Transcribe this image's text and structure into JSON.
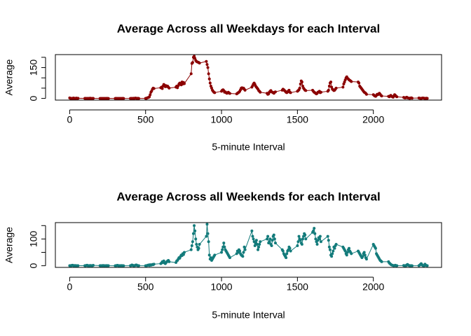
{
  "chart_data": [
    {
      "type": "line",
      "title": "Average Across all Weekdays for each Interval",
      "xlabel": "5-minute Interval",
      "ylabel": "Average",
      "x": [
        0,
        5,
        10,
        15,
        20,
        25,
        30,
        35,
        40,
        45,
        50,
        55,
        100,
        105,
        110,
        115,
        120,
        125,
        130,
        135,
        140,
        145,
        150,
        155,
        200,
        205,
        210,
        215,
        220,
        225,
        230,
        235,
        240,
        245,
        250,
        255,
        300,
        305,
        310,
        315,
        320,
        325,
        330,
        335,
        340,
        345,
        350,
        355,
        400,
        405,
        410,
        415,
        420,
        425,
        430,
        435,
        440,
        445,
        450,
        455,
        500,
        505,
        510,
        515,
        520,
        525,
        530,
        535,
        540,
        545,
        550,
        555,
        600,
        605,
        610,
        615,
        620,
        625,
        630,
        635,
        640,
        645,
        650,
        655,
        700,
        705,
        710,
        715,
        720,
        725,
        730,
        735,
        740,
        745,
        750,
        755,
        800,
        805,
        810,
        815,
        820,
        825,
        830,
        835,
        840,
        845,
        850,
        855,
        900,
        905,
        910,
        915,
        920,
        925,
        930,
        935,
        940,
        945,
        950,
        955,
        1000,
        1005,
        1010,
        1015,
        1020,
        1025,
        1030,
        1035,
        1040,
        1045,
        1050,
        1055,
        1100,
        1105,
        1110,
        1115,
        1120,
        1125,
        1130,
        1135,
        1140,
        1145,
        1150,
        1155,
        1200,
        1205,
        1210,
        1215,
        1220,
        1225,
        1230,
        1235,
        1240,
        1245,
        1250,
        1255,
        1300,
        1305,
        1310,
        1315,
        1320,
        1325,
        1330,
        1335,
        1340,
        1345,
        1350,
        1355,
        1400,
        1405,
        1410,
        1415,
        1420,
        1425,
        1430,
        1435,
        1440,
        1445,
        1450,
        1455,
        1500,
        1505,
        1510,
        1515,
        1520,
        1525,
        1530,
        1535,
        1540,
        1545,
        1550,
        1555,
        1600,
        1605,
        1610,
        1615,
        1620,
        1625,
        1630,
        1635,
        1640,
        1645,
        1650,
        1655,
        1700,
        1705,
        1710,
        1715,
        1720,
        1725,
        1730,
        1735,
        1740,
        1745,
        1750,
        1755,
        1800,
        1805,
        1810,
        1815,
        1820,
        1825,
        1830,
        1835,
        1840,
        1845,
        1850,
        1855,
        1900,
        1905,
        1910,
        1915,
        1920,
        1925,
        1930,
        1935,
        1940,
        1945,
        1950,
        1955,
        2000,
        2005,
        2010,
        2015,
        2020,
        2025,
        2030,
        2035,
        2040,
        2045,
        2050,
        2055,
        2100,
        2105,
        2110,
        2115,
        2120,
        2125,
        2130,
        2135,
        2140,
        2145,
        2150,
        2155,
        2200,
        2205,
        2210,
        2215,
        2220,
        2225,
        2230,
        2235,
        2240,
        2245,
        2250,
        2255,
        2300,
        2305,
        2310,
        2315,
        2320,
        2325,
        2330,
        2335,
        2340,
        2345,
        2350,
        2355
      ],
      "values": [
        2.3,
        0.4,
        0.2,
        0.2,
        0.1,
        2.1,
        0.5,
        0.8,
        0,
        1.4,
        0.3,
        0.7,
        0.2,
        0.4,
        0,
        0,
        0.5,
        0.1,
        0.3,
        1.3,
        0,
        0,
        0.1,
        0.2,
        0,
        0,
        0,
        0,
        0,
        0,
        0,
        0,
        0,
        0.2,
        0,
        0.1,
        0,
        0.2,
        0,
        0,
        0.1,
        0,
        0,
        0,
        0,
        0,
        0.5,
        0,
        0.1,
        0.3,
        0,
        0,
        0.8,
        0,
        1.1,
        1.4,
        0.3,
        0,
        0.8,
        0,
        0.4,
        0.3,
        2.6,
        3.6,
        5.2,
        8.1,
        18,
        30,
        36,
        45,
        50,
        48,
        52,
        55,
        48,
        60,
        68,
        64,
        57,
        62,
        58,
        60,
        55,
        50,
        55,
        60,
        52,
        62,
        70,
        75,
        68,
        66,
        80,
        70,
        78,
        72,
        120,
        170,
        175,
        200,
        205,
        195,
        185,
        180,
        178,
        176,
        175,
        172,
        180,
        165,
        150,
        120,
        95,
        75,
        60,
        50,
        40,
        35,
        30,
        28,
        35,
        40,
        42,
        38,
        30,
        32,
        28,
        25,
        27,
        30,
        26,
        24,
        22,
        25,
        28,
        30,
        35,
        42,
        50,
        52,
        48,
        50,
        45,
        40,
        55,
        62,
        70,
        75,
        68,
        60,
        55,
        50,
        45,
        38,
        35,
        30,
        25,
        20,
        22,
        30,
        35,
        38,
        32,
        30,
        28,
        25,
        30,
        32,
        40,
        45,
        42,
        38,
        35,
        30,
        28,
        32,
        36,
        40,
        30,
        28,
        35,
        38,
        42,
        50,
        70,
        85,
        80,
        60,
        50,
        45,
        40,
        38,
        40,
        35,
        30,
        28,
        25,
        22,
        25,
        30,
        32,
        35,
        28,
        30,
        35,
        40,
        60,
        75,
        80,
        55,
        45,
        42,
        38,
        40,
        45,
        50,
        55,
        70,
        80,
        90,
        100,
        105,
        98,
        95,
        90,
        88,
        85,
        82,
        80,
        75,
        60,
        55,
        50,
        45,
        40,
        35,
        30,
        28,
        25,
        20,
        18,
        15,
        12,
        10,
        15,
        20,
        18,
        22,
        25,
        20,
        15,
        12,
        10,
        8,
        12,
        15,
        10,
        8,
        6,
        12,
        18,
        15,
        10,
        8,
        5,
        3,
        2,
        4,
        6,
        3,
        2,
        1,
        0.5,
        2,
        3,
        1,
        2,
        1,
        0.5,
        0.3,
        1,
        2,
        1.5,
        0.8,
        0.4,
        0.3,
        1.2,
        0.5
      ],
      "color": "#8b0000",
      "xlim": [
        -94.2,
        2449.2
      ],
      "xticks": [
        0,
        500,
        1000,
        1500,
        2000
      ],
      "ylim": [
        -8.2,
        213.2
      ],
      "yticks": [
        0,
        150
      ],
      "yticks_unlabeled": [
        50,
        100,
        200
      ]
    },
    {
      "type": "line",
      "title": "Average Across all Weekends for each Interval",
      "xlabel": "5-minute Interval",
      "ylabel": "Average",
      "x": [
        0,
        5,
        10,
        15,
        20,
        25,
        30,
        35,
        40,
        45,
        50,
        55,
        100,
        105,
        110,
        115,
        120,
        125,
        130,
        135,
        140,
        145,
        150,
        155,
        200,
        205,
        210,
        215,
        220,
        225,
        230,
        235,
        240,
        245,
        250,
        255,
        300,
        305,
        310,
        315,
        320,
        325,
        330,
        335,
        340,
        345,
        350,
        355,
        400,
        405,
        410,
        415,
        420,
        425,
        430,
        435,
        440,
        445,
        450,
        455,
        500,
        505,
        510,
        515,
        520,
        525,
        530,
        535,
        540,
        545,
        550,
        555,
        600,
        605,
        610,
        615,
        620,
        625,
        630,
        635,
        640,
        645,
        650,
        655,
        700,
        705,
        710,
        715,
        720,
        725,
        730,
        735,
        740,
        745,
        750,
        755,
        800,
        805,
        810,
        815,
        820,
        825,
        830,
        835,
        840,
        845,
        850,
        855,
        900,
        905,
        910,
        915,
        920,
        925,
        930,
        935,
        940,
        945,
        950,
        955,
        1000,
        1005,
        1010,
        1015,
        1020,
        1025,
        1030,
        1035,
        1040,
        1045,
        1050,
        1055,
        1100,
        1105,
        1110,
        1115,
        1120,
        1125,
        1130,
        1135,
        1140,
        1145,
        1150,
        1155,
        1200,
        1205,
        1210,
        1215,
        1220,
        1225,
        1230,
        1235,
        1240,
        1245,
        1250,
        1255,
        1300,
        1305,
        1310,
        1315,
        1320,
        1325,
        1330,
        1335,
        1340,
        1345,
        1350,
        1355,
        1400,
        1405,
        1410,
        1415,
        1420,
        1425,
        1430,
        1435,
        1440,
        1445,
        1450,
        1455,
        1500,
        1505,
        1510,
        1515,
        1520,
        1525,
        1530,
        1535,
        1540,
        1545,
        1550,
        1555,
        1600,
        1605,
        1610,
        1615,
        1620,
        1625,
        1630,
        1635,
        1640,
        1645,
        1650,
        1655,
        1700,
        1705,
        1710,
        1715,
        1720,
        1725,
        1730,
        1735,
        1740,
        1745,
        1750,
        1755,
        1800,
        1805,
        1810,
        1815,
        1820,
        1825,
        1830,
        1835,
        1840,
        1845,
        1850,
        1855,
        1900,
        1905,
        1910,
        1915,
        1920,
        1925,
        1930,
        1935,
        1940,
        1945,
        1950,
        1955,
        2000,
        2005,
        2010,
        2015,
        2020,
        2025,
        2030,
        2035,
        2040,
        2045,
        2050,
        2055,
        2100,
        2105,
        2110,
        2115,
        2120,
        2125,
        2130,
        2135,
        2140,
        2145,
        2150,
        2155,
        2200,
        2205,
        2210,
        2215,
        2220,
        2225,
        2230,
        2235,
        2240,
        2245,
        2250,
        2255,
        2300,
        2305,
        2310,
        2315,
        2320,
        2325,
        2330,
        2335,
        2340,
        2345,
        2350,
        2355
      ],
      "values": [
        0.2,
        0.5,
        0,
        1.5,
        2,
        0.3,
        0,
        1,
        0.5,
        0.2,
        0,
        0.4,
        0.3,
        0.5,
        1.2,
        2,
        0.5,
        0,
        0.3,
        1,
        0.8,
        0,
        0.5,
        1.5,
        0.2,
        0.5,
        0,
        0.3,
        1,
        0.5,
        0.2,
        0,
        0.4,
        0.6,
        0.3,
        0.2,
        0,
        0.5,
        1,
        1.5,
        0.5,
        0.2,
        0,
        0.3,
        0.8,
        0.5,
        0.2,
        0.1,
        0.5,
        1,
        3,
        2,
        0.5,
        0.3,
        1,
        2.5,
        3,
        1,
        0.5,
        0.2,
        0,
        0.5,
        1,
        2,
        3,
        1,
        4,
        2,
        3,
        5,
        4,
        6,
        8,
        10,
        15,
        12,
        18,
        10,
        8,
        12,
        15,
        18,
        20,
        15,
        12,
        18,
        20,
        25,
        30,
        28,
        35,
        40,
        38,
        45,
        42,
        50,
        60,
        75,
        90,
        120,
        150,
        130,
        100,
        80,
        70,
        60,
        65,
        80,
        110,
        155,
        120,
        90,
        40,
        25,
        30,
        20,
        25,
        30,
        35,
        40,
        50,
        60,
        70,
        85,
        70,
        60,
        55,
        50,
        45,
        40,
        35,
        30,
        45,
        55,
        50,
        60,
        55,
        45,
        40,
        38,
        35,
        50,
        70,
        60,
        130,
        110,
        100,
        90,
        75,
        85,
        95,
        80,
        60,
        70,
        80,
        90,
        100,
        110,
        85,
        90,
        100,
        80,
        75,
        95,
        110,
        115,
        100,
        85,
        60,
        55,
        45,
        40,
        35,
        30,
        45,
        55,
        60,
        70,
        65,
        55,
        75,
        90,
        110,
        100,
        95,
        85,
        80,
        100,
        110,
        120,
        115,
        100,
        125,
        130,
        140,
        120,
        100,
        90,
        80,
        95,
        105,
        100,
        110,
        90,
        110,
        95,
        70,
        60,
        40,
        35,
        45,
        55,
        70,
        65,
        75,
        80,
        70,
        65,
        60,
        55,
        45,
        40,
        50,
        60,
        65,
        55,
        50,
        45,
        55,
        50,
        45,
        40,
        35,
        30,
        35,
        45,
        50,
        40,
        30,
        25,
        80,
        75,
        70,
        65,
        45,
        40,
        35,
        30,
        25,
        20,
        18,
        15,
        15,
        10,
        8,
        5,
        3,
        2,
        1,
        0.5,
        1,
        2,
        0.5,
        0.3,
        1,
        0.5,
        0.2,
        0.5,
        3,
        5,
        2,
        1,
        0.5,
        0.3,
        0.2,
        0,
        0.5,
        2,
        5,
        8,
        4,
        1,
        0.5,
        0.3,
        6,
        2,
        1,
        0.5
      ],
      "color": "#137b7b",
      "xlim": [
        -94.2,
        2449.2
      ],
      "xticks": [
        0,
        500,
        1000,
        1500,
        2000
      ],
      "ylim": [
        -6.2,
        161.2
      ],
      "yticks": [
        0,
        100
      ],
      "yticks_unlabeled": [
        50,
        150
      ]
    }
  ]
}
